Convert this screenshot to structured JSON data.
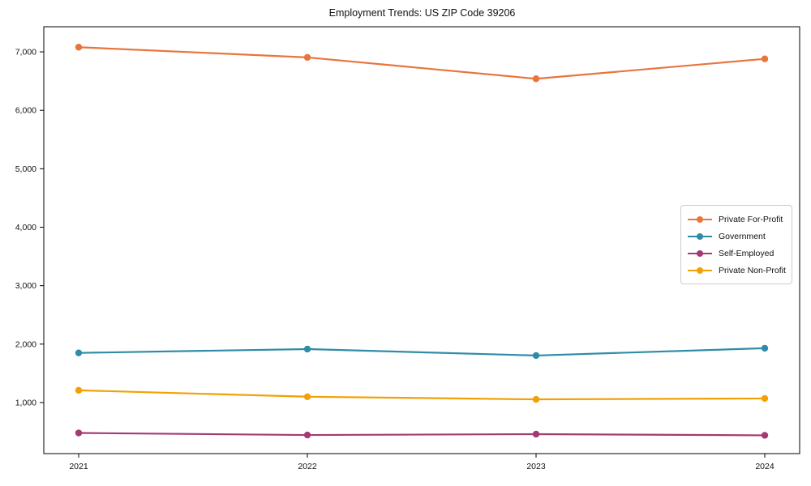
{
  "chart_data": {
    "type": "line",
    "title": "Employment Trends: US ZIP Code 39206",
    "xlabel": "",
    "ylabel": "",
    "x": [
      "2021",
      "2022",
      "2023",
      "2024"
    ],
    "series": [
      {
        "name": "Private For-Profit",
        "color": "#e8753c",
        "values": [
          7080,
          6905,
          6540,
          6880
        ]
      },
      {
        "name": "Government",
        "color": "#2f8ca8",
        "values": [
          1850,
          1915,
          1805,
          1930
        ]
      },
      {
        "name": "Self-Employed",
        "color": "#a23b72",
        "values": [
          480,
          445,
          460,
          440
        ]
      },
      {
        "name": "Private Non-Profit",
        "color": "#f2a104",
        "values": [
          1210,
          1100,
          1055,
          1070
        ]
      }
    ],
    "yticks": [
      1000,
      2000,
      3000,
      4000,
      5000,
      6000,
      7000
    ],
    "ytick_labels": [
      "1,000",
      "2,000",
      "3,000",
      "4,000",
      "5,000",
      "6,000",
      "7,000"
    ],
    "ylim": [
      127,
      7430
    ],
    "grid": false,
    "legend_position": "center-right",
    "marker": "circle",
    "axis_color": "#000000",
    "text_color": "#111111"
  }
}
